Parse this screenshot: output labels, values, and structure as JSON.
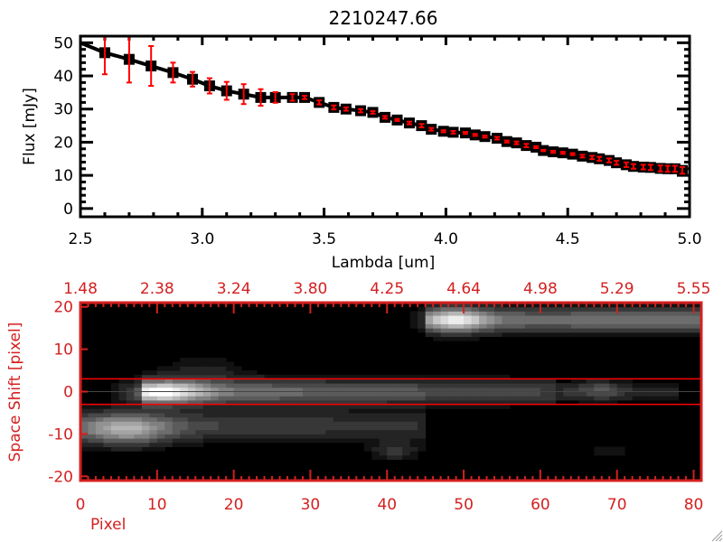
{
  "colors": {
    "axis_top": "#000000",
    "errorbar": "#ff0000",
    "axis_bottom": "#d42020",
    "extraction_line": "#ff0000",
    "center_line": "#000000"
  },
  "chart_data": [
    {
      "type": "line",
      "title": "2210247.66",
      "xlabel": "Lambda [um]",
      "ylabel": "Flux [mJy]",
      "xlim": [
        2.5,
        5.0
      ],
      "ylim": [
        -2.5,
        52
      ],
      "xticks": [
        "2.5",
        "3.0",
        "3.5",
        "4.0",
        "4.5",
        "5.0"
      ],
      "yticks": [
        "0",
        "10",
        "20",
        "30",
        "40",
        "50"
      ],
      "series": [
        {
          "name": "flux",
          "x": [
            2.6,
            2.7,
            2.79,
            2.88,
            2.96,
            3.03,
            3.1,
            3.17,
            3.24,
            3.3,
            3.37,
            3.42,
            3.48,
            3.54,
            3.59,
            3.65,
            3.7,
            3.75,
            3.8,
            3.85,
            3.9,
            3.94,
            3.99,
            4.03,
            4.08,
            4.12,
            4.16,
            4.21,
            4.25,
            4.29,
            4.33,
            4.37,
            4.4,
            4.44,
            4.48,
            4.52,
            4.56,
            4.6,
            4.63,
            4.67,
            4.7,
            4.74,
            4.77,
            4.81,
            4.84,
            4.88,
            4.91,
            4.94,
            4.97
          ],
          "y": [
            47,
            45,
            43,
            41,
            39,
            37,
            35.5,
            34.5,
            33.5,
            33.5,
            33.5,
            33.5,
            32,
            30.5,
            30,
            29.5,
            29,
            27.5,
            26.7,
            25.8,
            25.0,
            23.9,
            23.3,
            23.0,
            22.8,
            22.2,
            21.7,
            21.2,
            20.2,
            19.8,
            19.0,
            18.5,
            17.5,
            17.1,
            16.8,
            16.4,
            15.8,
            15.4,
            15.0,
            14.5,
            13.8,
            13.2,
            12.7,
            12.5,
            12.4,
            12.1,
            12.0,
            12.0,
            11.5
          ],
          "err": [
            6.5,
            7,
            6,
            3,
            2.2,
            2.3,
            2.7,
            3,
            2.5,
            1.6,
            1,
            0.5,
            0.6,
            0.6,
            0.5,
            0.5,
            0.4,
            0.4,
            0.3,
            0.4,
            0.5,
            0.4,
            0.3,
            0.4,
            0.3,
            0.3,
            0.3,
            0.4,
            0.3,
            0.4,
            0.5,
            0.3,
            0.2,
            0.3,
            0.3,
            0.3,
            0.4,
            0.5,
            0.6,
            0.6,
            0.6,
            0.7,
            0.7,
            0.7,
            0.8,
            0.9,
            0.9,
            0.9,
            1.0
          ]
        }
      ]
    },
    {
      "type": "heatmap",
      "xlabel": "Pixel",
      "ylabel": "Space Shift [pixel]",
      "xlim": [
        0,
        81
      ],
      "ylim": [
        -21,
        21
      ],
      "xticks": [
        "0",
        "10",
        "20",
        "30",
        "40",
        "50",
        "60",
        "70",
        "80"
      ],
      "yticks": [
        "20",
        "10",
        "0",
        "-10",
        "-20"
      ],
      "top_xticks": [
        "1.48",
        "2.38",
        "3.24",
        "3.80",
        "4.25",
        "4.64",
        "4.98",
        "5.29",
        "5.55"
      ],
      "extraction_window": [
        -3,
        3
      ],
      "center_line": 0,
      "features": [
        {
          "x": 11,
          "y": 0,
          "sx": 3.5,
          "sy": 1.8,
          "amp": 0.55
        },
        {
          "x0": 8,
          "x1": 62,
          "y": 0,
          "sy": 2.0,
          "amp0": 0.5,
          "amp1": 0.25
        },
        {
          "x0": 62,
          "x1": 78,
          "y": 0,
          "sy": 1.6,
          "amp0": 0.18,
          "amp1": 0.12
        },
        {
          "x": 68,
          "y": 0.5,
          "sx": 2,
          "sy": 1.5,
          "amp": 0.2
        },
        {
          "x": 6,
          "y": -9,
          "sx": 4,
          "sy": 2.5,
          "amp": 0.45
        },
        {
          "x0": 0,
          "x1": 45,
          "y": -8,
          "sy": 2.5,
          "amp0": 0.3,
          "amp1": 0.18
        },
        {
          "x": 49,
          "y": 17,
          "sx": 3,
          "sy": 2,
          "amp": 0.55
        },
        {
          "x0": 45,
          "x1": 81,
          "y": 17,
          "sy": 2,
          "amp0": 0.4,
          "amp1": 0.45
        },
        {
          "x": 41,
          "y": -14,
          "sx": 2,
          "sy": 1.5,
          "amp": 0.22
        },
        {
          "x": 69,
          "y": -14,
          "sx": 1.5,
          "sy": 1,
          "amp": 0.12
        },
        {
          "x": 16,
          "y": 5,
          "sx": 4,
          "sy": 2.5,
          "amp": 0.12
        }
      ]
    }
  ]
}
